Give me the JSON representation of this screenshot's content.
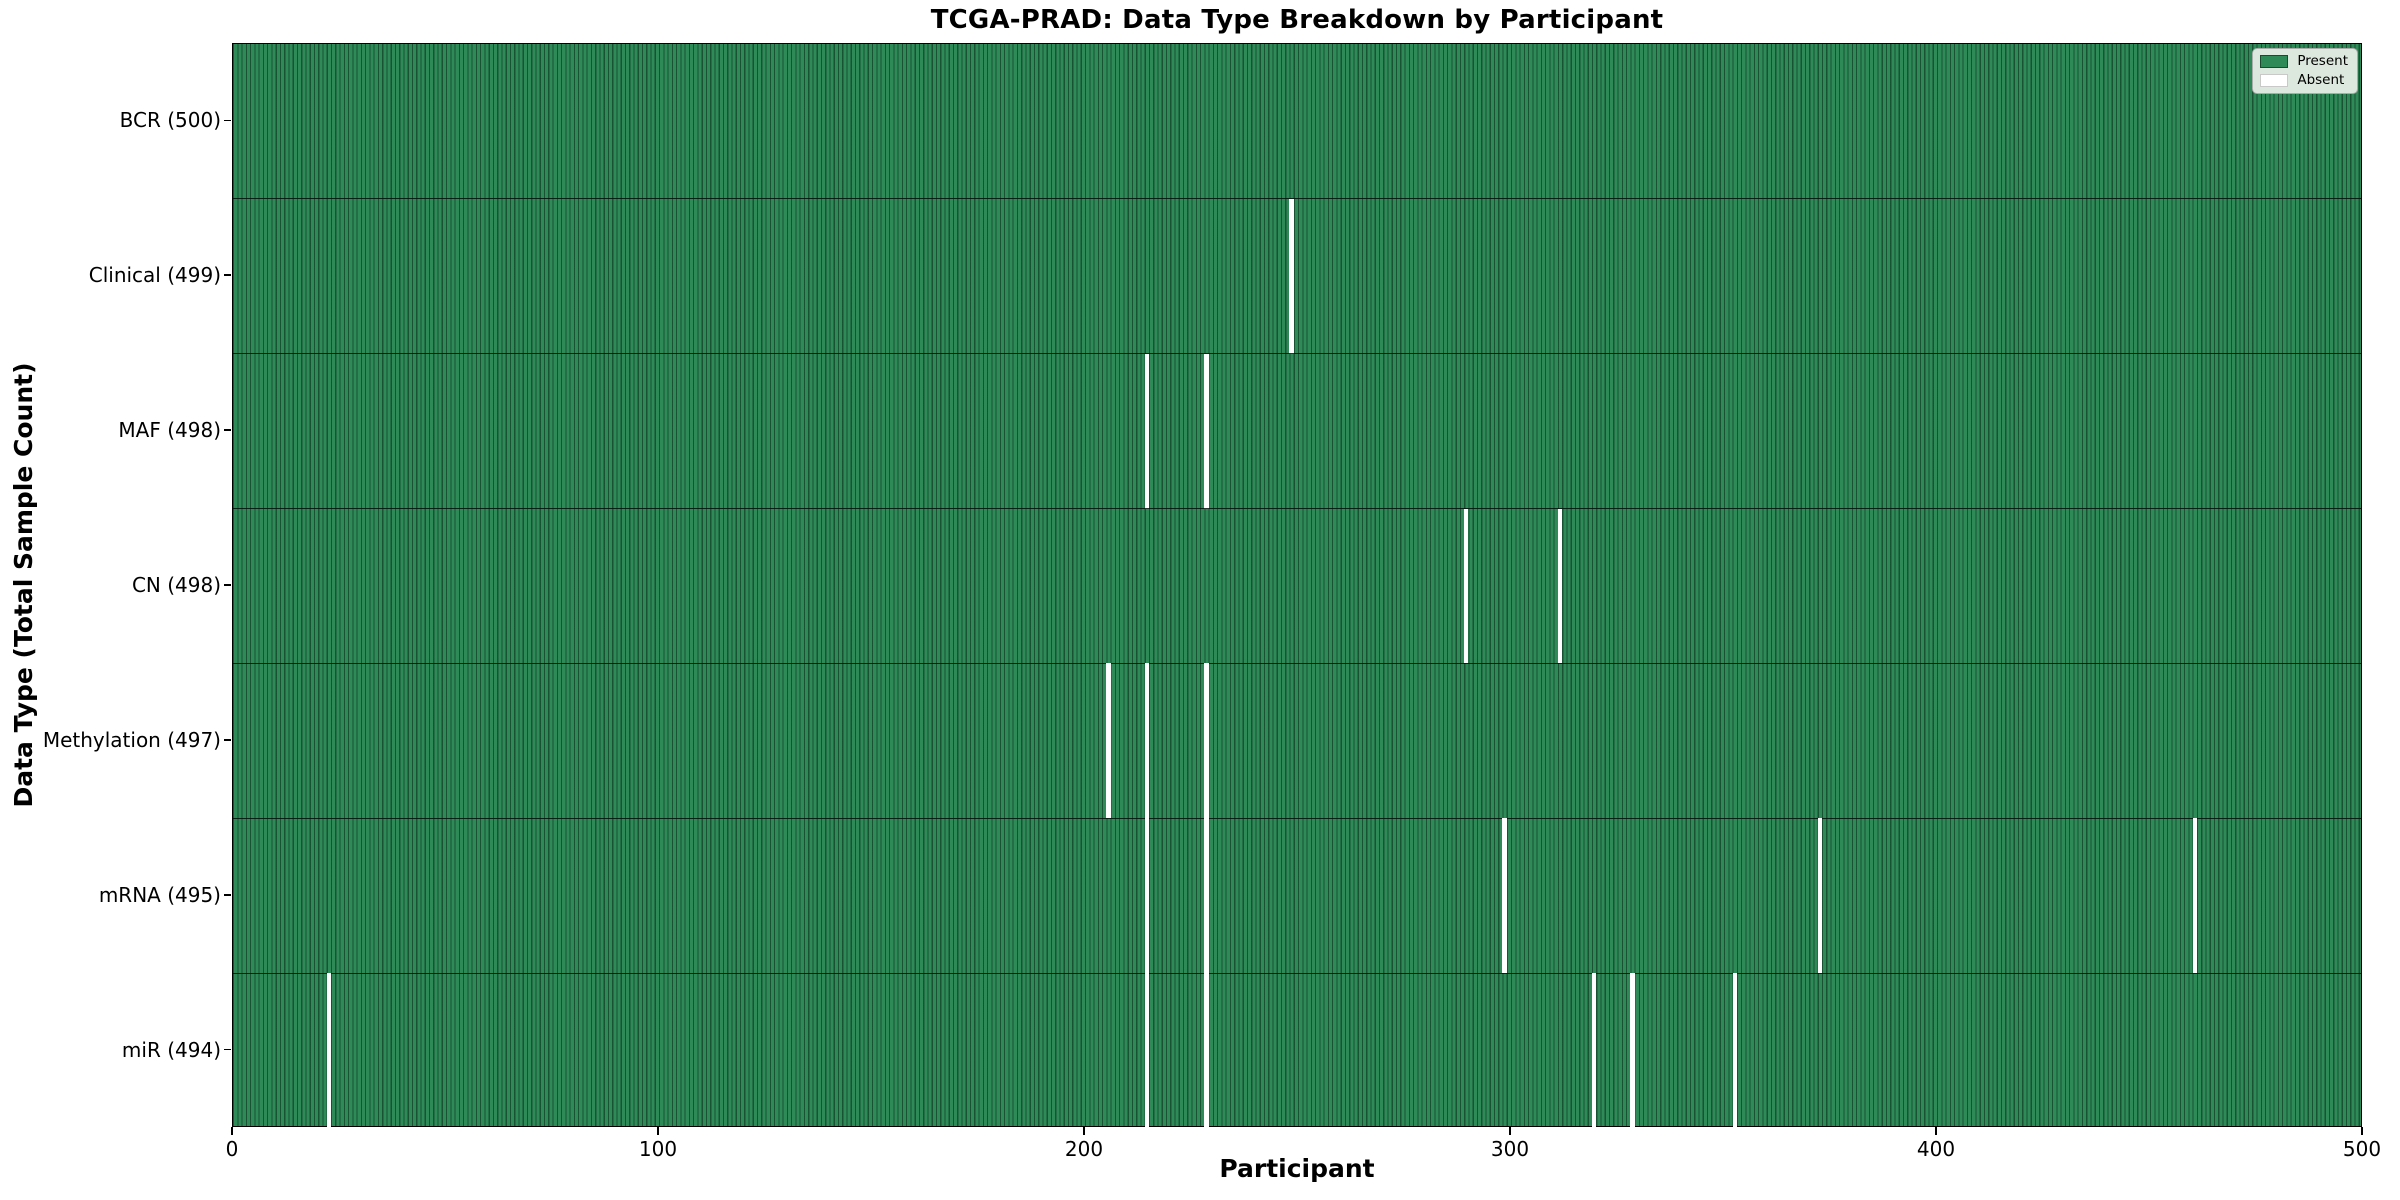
{
  "title": "TCGA-PRAD: Data Type Breakdown by Participant",
  "xlabel": "Participant",
  "ylabel": "Data Type (Total Sample Count)",
  "legend": {
    "present_label": "Present",
    "absent_label": "Absent"
  },
  "colors": {
    "present": "#2e8b57",
    "absent": "#ffffff",
    "bar_edge": "rgba(5,25,15,0.50)",
    "row_divider": "rgba(5,15,10,0.85)",
    "legend_bg": "#dce8dd"
  },
  "chart_data": {
    "type": "heatmap",
    "title": "TCGA-PRAD: Data Type Breakdown by Participant",
    "xlabel": "Participant",
    "ylabel": "Data Type (Total Sample Count)",
    "xlim": [
      0,
      500
    ],
    "x_ticks": [
      0,
      100,
      200,
      300,
      400,
      500
    ],
    "n_participants": 500,
    "legend_entries": [
      "Present",
      "Absent"
    ],
    "legend_position": "upper right",
    "grid": false,
    "rows": [
      {
        "label": "BCR (500)",
        "data_type": "BCR",
        "total": 500,
        "absent_participants": []
      },
      {
        "label": "Clinical (499)",
        "data_type": "Clinical",
        "total": 499,
        "absent_participants": [
          248
        ]
      },
      {
        "label": "MAF (498)",
        "data_type": "MAF",
        "total": 498,
        "absent_participants": [
          214,
          228
        ]
      },
      {
        "label": "CN (498)",
        "data_type": "CN",
        "total": 498,
        "absent_participants": [
          289,
          311
        ]
      },
      {
        "label": "Methylation (497)",
        "data_type": "Methylation",
        "total": 497,
        "absent_participants": [
          205,
          214,
          228
        ]
      },
      {
        "label": "mRNA (495)",
        "data_type": "mRNA",
        "total": 495,
        "absent_participants": [
          214,
          228,
          298,
          372,
          460
        ]
      },
      {
        "label": "miR (494)",
        "data_type": "miR",
        "total": 494,
        "absent_participants": [
          22,
          214,
          228,
          319,
          328,
          352
        ]
      }
    ]
  }
}
